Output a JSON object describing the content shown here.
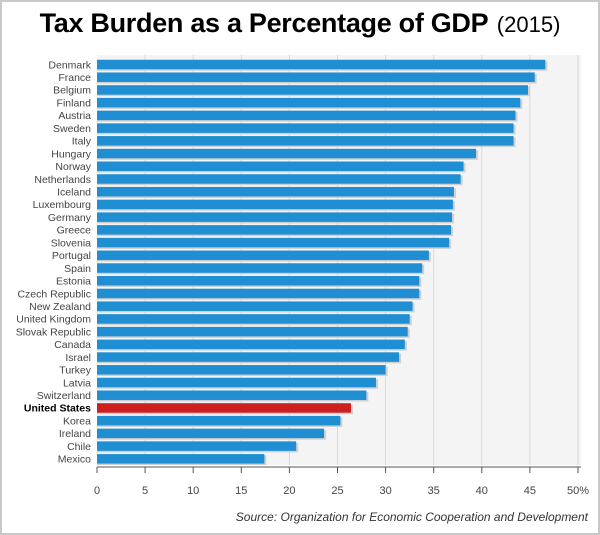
{
  "title": "Tax Burden as a Percentage of GDP",
  "title_year": "(2015)",
  "source": "Source: Organization for Economic Cooperation and Development",
  "colors": {
    "bar": "#1f8ed2",
    "highlight": "#cc1f1f",
    "grid": "#d9d9d9",
    "axis": "#555555",
    "label": "#444444"
  },
  "chart_data": {
    "type": "bar",
    "orientation": "horizontal",
    "categories": [
      "Denmark",
      "France",
      "Belgium",
      "Finland",
      "Austria",
      "Sweden",
      "Italy",
      "Hungary",
      "Norway",
      "Netherlands",
      "Iceland",
      "Luxembourg",
      "Germany",
      "Greece",
      "Slovenia",
      "Portugal",
      "Spain",
      "Estonia",
      "Czech Republic",
      "New Zealand",
      "United Kingdom",
      "Slovak Republic",
      "Canada",
      "Israel",
      "Turkey",
      "Latvia",
      "Switzerland",
      "United States",
      "Korea",
      "Ireland",
      "Chile",
      "Mexico"
    ],
    "values": [
      46.6,
      45.5,
      44.8,
      44.0,
      43.5,
      43.3,
      43.3,
      39.4,
      38.1,
      37.8,
      37.1,
      37.0,
      36.9,
      36.8,
      36.6,
      34.5,
      33.8,
      33.5,
      33.5,
      32.8,
      32.5,
      32.3,
      32.0,
      31.4,
      30.0,
      29.0,
      28.0,
      26.4,
      25.3,
      23.6,
      20.7,
      17.4
    ],
    "highlight": "United States",
    "xlim": [
      0,
      50
    ],
    "xticks": [
      "0",
      "5",
      "10",
      "15",
      "20",
      "25",
      "30",
      "35",
      "40",
      "45",
      "50%"
    ],
    "xtick_values": [
      0,
      5,
      10,
      15,
      20,
      25,
      30,
      35,
      40,
      45,
      50
    ],
    "grid": true
  }
}
